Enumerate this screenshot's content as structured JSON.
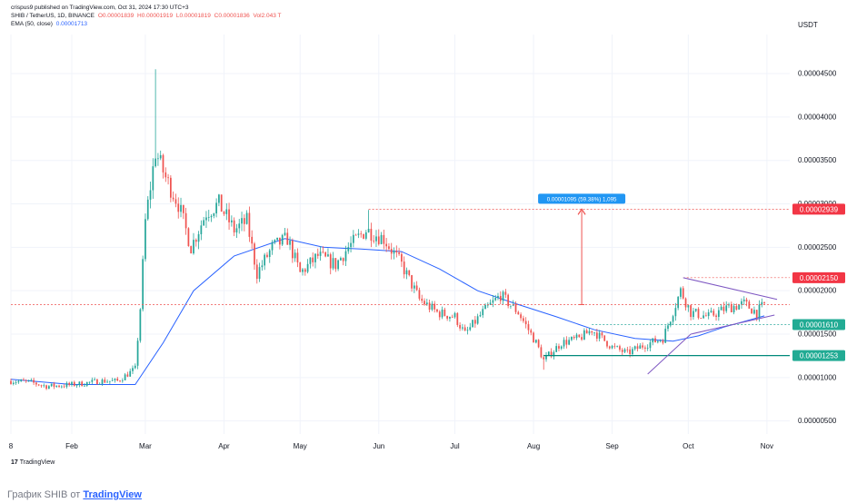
{
  "header": {
    "published": "crispus9 published on TradingView.com, Oct 31, 2024 17:30 UTC+3",
    "symbol": "SHIB / TetherUS, 1D, BINANCE",
    "open": "O0.00001839",
    "high": "H0.00001919",
    "low": "L0.00001819",
    "close": "C0.00001836",
    "volume": "Vol2.043 T",
    "ema_label": "EMA (50, close)",
    "ema_value": "0.00001713"
  },
  "currency": "USDT",
  "caption": {
    "prefix": "График SHIB от",
    "link": "TradingView"
  },
  "logo": {
    "mark": "17",
    "text": "TradingView"
  },
  "colors": {
    "up": "#26a69a",
    "down": "#ef5350",
    "ema": "#2962ff",
    "triangle": "#7e57c2",
    "measure": "#ef5350",
    "label_red": "#f23645",
    "label_teal": "#22ab94",
    "measure_label": "#2196f3"
  },
  "chart_data": {
    "type": "candlestick",
    "title": "SHIB / TetherUS, 1D, BINANCE",
    "y_ticks": [
      5e-06,
      1e-05,
      1.5e-05,
      2e-05,
      2.5e-05,
      3e-05,
      3.5e-05,
      4e-05,
      4.5e-05
    ],
    "y_tick_labels": [
      "0.00000500",
      "0.00001000",
      "0.00001500",
      "0.00002000",
      "0.00002500",
      "0.00003000",
      "0.00003500",
      "0.00004000",
      "0.00004500"
    ],
    "ylim": [
      3.5e-06,
      4.95e-05
    ],
    "x_range": [
      "2024-01-08",
      "2024-11-10"
    ],
    "x_ticks": [
      {
        "date": "2024-01-08",
        "label": "8"
      },
      {
        "date": "2024-02-01",
        "label": "Feb"
      },
      {
        "date": "2024-03-01",
        "label": "Mar"
      },
      {
        "date": "2024-04-01",
        "label": "Apr"
      },
      {
        "date": "2024-05-01",
        "label": "May"
      },
      {
        "date": "2024-06-01",
        "label": "Jun"
      },
      {
        "date": "2024-07-01",
        "label": "Jul"
      },
      {
        "date": "2024-08-01",
        "label": "Aug"
      },
      {
        "date": "2024-09-01",
        "label": "Sep"
      },
      {
        "date": "2024-10-01",
        "label": "Oct"
      },
      {
        "date": "2024-11-01",
        "label": "Nov"
      }
    ],
    "close_path": [
      [
        "2024-01-08",
        9.6e-06
      ],
      [
        "2024-01-15",
        9.5e-06
      ],
      [
        "2024-01-22",
        9e-06
      ],
      [
        "2024-01-29",
        9.1e-06
      ],
      [
        "2024-02-05",
        9.3e-06
      ],
      [
        "2024-02-12",
        9.6e-06
      ],
      [
        "2024-02-19",
        9.6e-06
      ],
      [
        "2024-02-26",
        1.1e-05
      ],
      [
        "2024-02-28",
        1.8e-05
      ],
      [
        "2024-03-01",
        2.8e-05
      ],
      [
        "2024-03-05",
        3.6e-05
      ],
      [
        "2024-03-09",
        3.3e-05
      ],
      [
        "2024-03-14",
        3e-05
      ],
      [
        "2024-03-19",
        2.5e-05
      ],
      [
        "2024-03-25",
        2.9e-05
      ],
      [
        "2024-03-30",
        3e-05
      ],
      [
        "2024-04-05",
        2.7e-05
      ],
      [
        "2024-04-10",
        2.8e-05
      ],
      [
        "2024-04-14",
        2.2e-05
      ],
      [
        "2024-04-20",
        2.5e-05
      ],
      [
        "2024-04-26",
        2.6e-05
      ],
      [
        "2024-05-01",
        2.2e-05
      ],
      [
        "2024-05-08",
        2.4e-05
      ],
      [
        "2024-05-15",
        2.3e-05
      ],
      [
        "2024-05-20",
        2.5e-05
      ],
      [
        "2024-05-27",
        2.7e-05
      ],
      [
        "2024-06-03",
        2.6e-05
      ],
      [
        "2024-06-10",
        2.3e-05
      ],
      [
        "2024-06-17",
        1.9e-05
      ],
      [
        "2024-06-24",
        1.75e-05
      ],
      [
        "2024-07-01",
        1.7e-05
      ],
      [
        "2024-07-05",
        1.5e-05
      ],
      [
        "2024-07-12",
        1.75e-05
      ],
      [
        "2024-07-19",
        1.95e-05
      ],
      [
        "2024-07-26",
        1.75e-05
      ],
      [
        "2024-08-02",
        1.4e-05
      ],
      [
        "2024-08-05",
        1.2e-05
      ],
      [
        "2024-08-12",
        1.4e-05
      ],
      [
        "2024-08-19",
        1.45e-05
      ],
      [
        "2024-08-24",
        1.55e-05
      ],
      [
        "2024-09-01",
        1.35e-05
      ],
      [
        "2024-09-07",
        1.28e-05
      ],
      [
        "2024-09-14",
        1.38e-05
      ],
      [
        "2024-09-21",
        1.45e-05
      ],
      [
        "2024-09-28",
        2e-05
      ],
      [
        "2024-10-02",
        1.75e-05
      ],
      [
        "2024-10-09",
        1.7e-05
      ],
      [
        "2024-10-16",
        1.8e-05
      ],
      [
        "2024-10-23",
        1.85e-05
      ],
      [
        "2024-10-28",
        1.75e-05
      ],
      [
        "2024-10-31",
        1.84e-05
      ]
    ],
    "spikes": [
      {
        "date": "2024-03-05",
        "high": 4.55e-05
      },
      {
        "date": "2024-05-28",
        "high": 2.93e-05
      },
      {
        "date": "2024-08-05",
        "low": 1.09e-05
      }
    ],
    "ema": {
      "name": "EMA (50, close)",
      "points": [
        [
          "2024-01-08",
          9.8e-06
        ],
        [
          "2024-02-01",
          9.2e-06
        ],
        [
          "2024-02-26",
          9.2e-06
        ],
        [
          "2024-03-08",
          1.4e-05
        ],
        [
          "2024-03-20",
          2e-05
        ],
        [
          "2024-04-05",
          2.4e-05
        ],
        [
          "2024-04-25",
          2.6e-05
        ],
        [
          "2024-05-10",
          2.5e-05
        ],
        [
          "2024-05-25",
          2.48e-05
        ],
        [
          "2024-06-10",
          2.45e-05
        ],
        [
          "2024-06-25",
          2.25e-05
        ],
        [
          "2024-07-10",
          2e-05
        ],
        [
          "2024-07-25",
          1.85e-05
        ],
        [
          "2024-08-10",
          1.7e-05
        ],
        [
          "2024-08-25",
          1.55e-05
        ],
        [
          "2024-09-10",
          1.45e-05
        ],
        [
          "2024-09-25",
          1.42e-05
        ],
        [
          "2024-10-05",
          1.48e-05
        ],
        [
          "2024-10-15",
          1.58e-05
        ],
        [
          "2024-10-31",
          1.71e-05
        ]
      ]
    },
    "price_labels": [
      {
        "value": 2.939e-05,
        "text": "0.00002939",
        "color": "red"
      },
      {
        "value": 2.15e-05,
        "text": "0.00002150",
        "color": "red"
      },
      {
        "value": 1.61e-05,
        "text": "0.00001610",
        "color": "teal"
      },
      {
        "value": 1.253e-05,
        "text": "0.00001253",
        "color": "teal"
      }
    ],
    "current_price": 1.84e-05,
    "measure": {
      "date": "2024-08-20",
      "from": 1.84e-05,
      "to": 2.939e-05,
      "label": "0.00001095 (59.38%) 1,095"
    },
    "triangle": {
      "upper": [
        [
          "2024-09-29",
          2.15e-05
        ],
        [
          "2024-11-05",
          1.9e-05
        ]
      ],
      "lower": [
        [
          "2024-10-02",
          1.5e-05
        ],
        [
          "2024-11-04",
          1.72e-05
        ]
      ],
      "trend": [
        [
          "2024-09-15",
          1.04e-05
        ],
        [
          "2024-10-02",
          1.5e-05
        ]
      ]
    },
    "support": {
      "from": "2024-08-05",
      "to": "2024-11-15",
      "value": 1.253e-05
    }
  }
}
